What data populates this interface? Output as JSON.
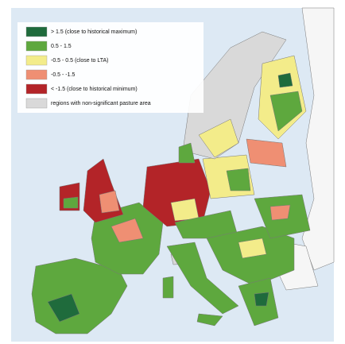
{
  "legend": {
    "items": [
      {
        "label": "> 1.5 (close to historical maximum)",
        "color": "#1f6b3c"
      },
      {
        "label": "0.5 - 1.5",
        "color": "#5ea83e"
      },
      {
        "label": "-0.5 - 0.5 (close to LTA)",
        "color": "#f3ec8a"
      },
      {
        "label": "-0.5 - -1.5",
        "color": "#ef8f73"
      },
      {
        "label": "< -1.5 (close to historical minimum)",
        "color": "#b32428"
      },
      {
        "label": "regions with non-significant pasture area",
        "color": "#d9d9d9"
      }
    ]
  }
}
